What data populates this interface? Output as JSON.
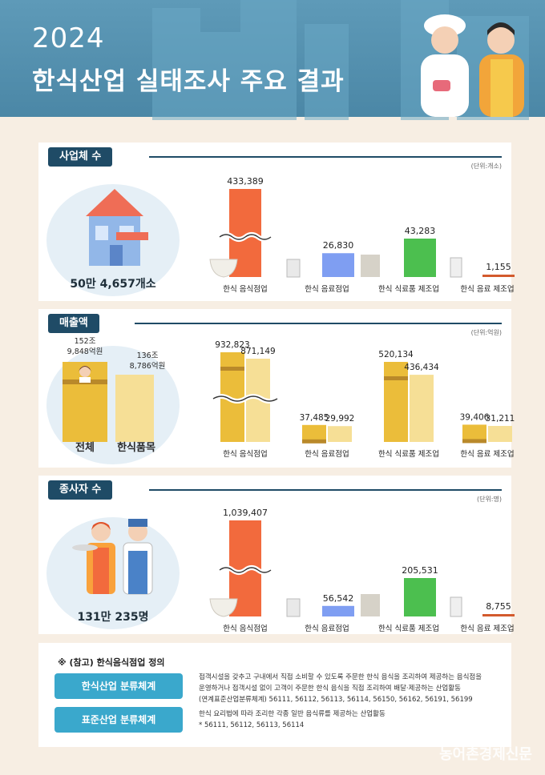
{
  "header": {
    "year": "2024",
    "title": "한식산업 실태조사 주요 결과"
  },
  "sections": {
    "businesses": {
      "label": "사업체 수",
      "unit": "(단위:개소)",
      "total": "50만 4,657개소"
    },
    "sales": {
      "label": "매출액",
      "unit": "(단위:억원)",
      "total_label": "전체",
      "total_value": "152조\n9,848억원",
      "korean_label": "한식품목",
      "korean_value": "136조\n8,786억원"
    },
    "employees": {
      "label": "종사자 수",
      "unit": "(단위:명)",
      "total": "131만 235명"
    }
  },
  "chart_data": [
    {
      "type": "bar",
      "categories": [
        "한식 음식점업",
        "한식 음료점업",
        "한식 식료품 제조업",
        "한식 음료 제조업"
      ],
      "values": [
        433389,
        26830,
        43283,
        1155
      ],
      "value_labels": [
        "433,389",
        "26,830",
        "43,283",
        "1,155"
      ],
      "axis_break": true,
      "colors": [
        "#f26a3d",
        "#7f9ef2",
        "#4cbf4f",
        "#d35a2d"
      ]
    },
    {
      "type": "bar",
      "categories": [
        "한식 음식점업",
        "한식 음료점업",
        "한식 식료품 제조업",
        "한식 음료 제조업"
      ],
      "series": [
        {
          "values": [
            932823,
            37485,
            520134,
            39406
          ],
          "value_labels": [
            "932,823",
            "37,485",
            "520,134",
            "39,406"
          ],
          "color": "#ebbd3a"
        },
        {
          "values": [
            871149,
            29992,
            436434,
            31211
          ],
          "value_labels": [
            "871,149",
            "29,992",
            "436,434",
            "31,211"
          ],
          "color": "#f6df96"
        }
      ],
      "axis_break": true,
      "totals": [
        {
          "value": 1529848
        },
        {
          "value": 1368786
        }
      ]
    },
    {
      "type": "bar",
      "categories": [
        "한식 음식점업",
        "한식 음료점업",
        "한식 식료품 제조업",
        "한식 음료 제조업"
      ],
      "values": [
        1039407,
        56542,
        205531,
        8755
      ],
      "value_labels": [
        "1,039,407",
        "56,542",
        "205,531",
        "8,755"
      ],
      "axis_break": true,
      "colors": [
        "#f26a3d",
        "#7f9ef2",
        "#4cbf4f",
        "#d35a2d"
      ]
    }
  ],
  "note": {
    "title": "※ (참고) 한식음식점업 정의",
    "items": [
      {
        "label": "한식산업 분류체계",
        "line1": "접객시설을 갖추고 구내에서 직접 소비할 수 있도록 주문한 한식 음식을 조리하여 제공하는 음식점을",
        "line2": "운영하거나 접객시설 없이 고객이 주문한 한식 음식을 직접 조리하여 배달·제공하는 산업활동",
        "line3": "(연계표준산업분류체계) 56111, 56112, 56113, 56114, 56150, 56162, 56191, 56199"
      },
      {
        "label": "표준산업 분류체계",
        "line1": "한식 요리법에 따라 조리한 각종 일반 음식류를 제공하는 산업활동",
        "line2": "* 56111, 56112, 56113, 56114"
      }
    ]
  },
  "watermark": "농어촌경제신문"
}
